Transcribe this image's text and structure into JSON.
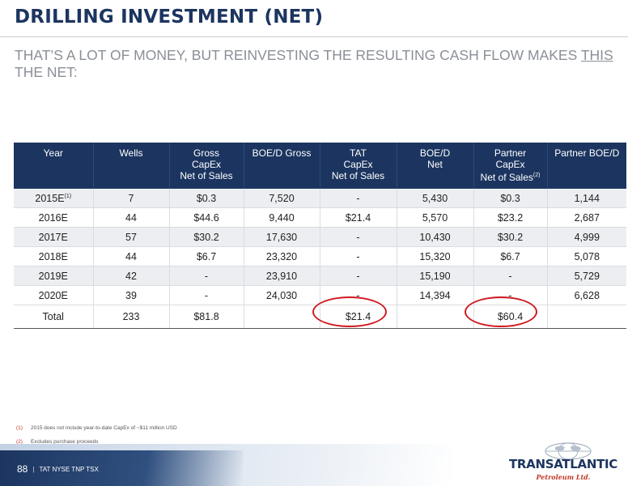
{
  "slide": {
    "title": "DRILLING INVESTMENT (NET)",
    "subtitle_pre": "THAT’S A LOT OF MONEY, BUT REINVESTING THE RESULTING CASH FLOW MAKES ",
    "subtitle_em": "THIS",
    "subtitle_post": " THE NET:"
  },
  "table": {
    "headers": {
      "year": "Year",
      "wells": "Wells",
      "gross_l1": "Gross",
      "gross_l2": "CapEx",
      "gross_l3": "Net of Sales",
      "boed_gross": "BOE/D Gross",
      "tat_l1": "TAT",
      "tat_l2": "CapEx",
      "tat_l3": "Net of Sales",
      "boed_net_l1": "BOE/D",
      "boed_net_l2": "Net",
      "partner_l1": "Partner",
      "partner_l2": "CapEx",
      "partner_l3": "Net of Sales",
      "partner_sup": "(2)",
      "partner_boed": "Partner BOE/D"
    },
    "rows": [
      {
        "year": "2015E",
        "year_sup": "(1)",
        "wells": "7",
        "gross": "$0.3",
        "boed_gross": "7,520",
        "tat": "-",
        "boed_net": "5,430",
        "partner": "$0.3",
        "partner_boed": "1,144"
      },
      {
        "year": "2016E",
        "year_sup": "",
        "wells": "44",
        "gross": "$44.6",
        "boed_gross": "9,440",
        "tat": "$21.4",
        "boed_net": "5,570",
        "partner": "$23.2",
        "partner_boed": "2,687"
      },
      {
        "year": "2017E",
        "year_sup": "",
        "wells": "57",
        "gross": "$30.2",
        "boed_gross": "17,630",
        "tat": "-",
        "boed_net": "10,430",
        "partner": "$30.2",
        "partner_boed": "4,999"
      },
      {
        "year": "2018E",
        "year_sup": "",
        "wells": "44",
        "gross": "$6.7",
        "boed_gross": "23,320",
        "tat": "-",
        "boed_net": "15,320",
        "partner": "$6.7",
        "partner_boed": "5,078"
      },
      {
        "year": "2019E",
        "year_sup": "",
        "wells": "42",
        "gross": "-",
        "boed_gross": "23,910",
        "tat": "-",
        "boed_net": "15,190",
        "partner": "-",
        "partner_boed": "5,729"
      },
      {
        "year": "2020E",
        "year_sup": "",
        "wells": "39",
        "gross": "-",
        "boed_gross": "24,030",
        "tat": "-",
        "boed_net": "14,394",
        "partner": "-",
        "partner_boed": "6,628"
      }
    ],
    "total": {
      "label": "Total",
      "wells": "233",
      "gross": "$81.8",
      "boed_gross": "",
      "tat": "$21.4",
      "boed_net": "",
      "partner": "$60.4",
      "partner_boed": ""
    }
  },
  "highlight_color": "#d0191f",
  "footnotes": [
    {
      "num": "(1)",
      "text": "2015 does not include year-to-date CapEx of ~$11 million USD"
    },
    {
      "num": "(2)",
      "text": "Excludes purchase proceeds"
    }
  ],
  "footer": {
    "page": "88",
    "separator": "|",
    "tickers": "TAT NYSE  TNP TSX"
  },
  "logo": {
    "name": "TRANSATLANTIC",
    "sub": "Petroleum Ltd."
  }
}
